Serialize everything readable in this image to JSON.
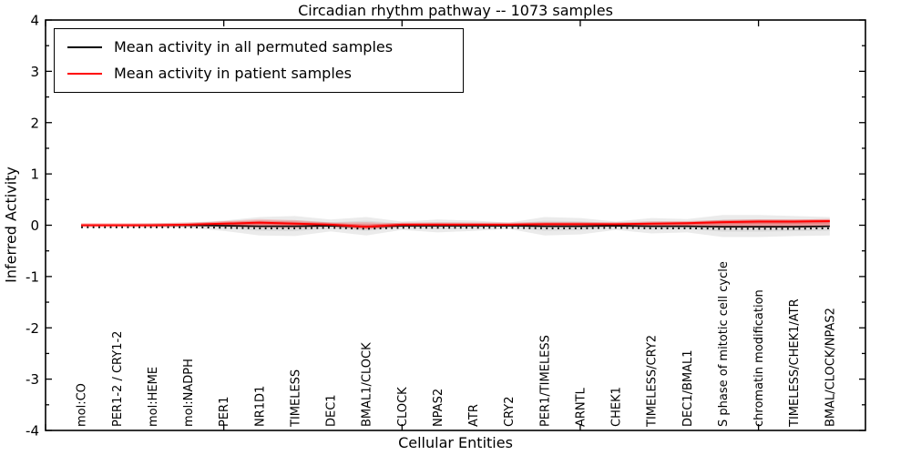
{
  "figure": {
    "title": "Circadian rhythm pathway -- 1073 samples",
    "xlabel": "Cellular Entities",
    "ylabel": "Inferred Activity"
  },
  "legend": {
    "items": [
      {
        "label": "Mean activity in all permuted samples",
        "color": "#000000"
      },
      {
        "label": "Mean activity in patient samples",
        "color": "#ff0000"
      }
    ]
  },
  "chart_data": {
    "type": "line",
    "title": "Circadian rhythm pathway -- 1073 samples",
    "xlabel": "Cellular Entities",
    "ylabel": "Inferred Activity",
    "ylim": [
      -4,
      4
    ],
    "xlim": [
      0,
      23
    ],
    "yticks": [
      -4,
      -3,
      -2,
      -1,
      0,
      1,
      2,
      3,
      4
    ],
    "ytick_minor_step": 0.5,
    "xticks": [
      0,
      5,
      10,
      15,
      20
    ],
    "grid": false,
    "legend_position": "upper left",
    "categories": [
      "mol:CO",
      "PER1-2 / CRY1-2",
      "mol:HEME",
      "mol:NADPH",
      "PER1",
      "NR1D1",
      "TIMELESS",
      "DEC1",
      "BMAL1/CLOCK",
      "CLOCK",
      "NPAS2",
      "ATR",
      "CRY2",
      "PER1/TIMELESS",
      "ARNTL",
      "CHEK1",
      "TIMELESS/CRY2",
      "DEC1/BMAL1",
      "S phase of mitotic cell cycle",
      "chromatin modification",
      "TIMELESS/CHEK1/ATR",
      "BMAL/CLOCK/NPAS2"
    ],
    "x_positions": [
      1,
      2,
      3,
      4,
      5,
      6,
      7,
      8,
      9,
      10,
      11,
      12,
      13,
      14,
      15,
      16,
      17,
      18,
      19,
      20,
      21,
      22
    ],
    "series": [
      {
        "name": "Mean activity in all permuted samples",
        "color": "#000000",
        "values": [
          0,
          0,
          0,
          0,
          -0.01,
          -0.02,
          -0.02,
          -0.01,
          -0.03,
          -0.01,
          -0.01,
          -0.01,
          -0.01,
          -0.02,
          -0.02,
          -0.01,
          -0.02,
          -0.02,
          -0.03,
          -0.03,
          -0.03,
          -0.02
        ]
      },
      {
        "name": "Mean activity in patient samples",
        "color": "#ff0000",
        "values": [
          0,
          0,
          0,
          0.01,
          0.03,
          0.05,
          0.03,
          0.01,
          -0.03,
          0.01,
          0.01,
          0.01,
          0.01,
          0.02,
          0.02,
          0.02,
          0.03,
          0.04,
          0.06,
          0.07,
          0.07,
          0.08
        ]
      }
    ],
    "bands": [
      {
        "name": "permuted-samples-range",
        "color": "#999999",
        "upper": [
          0.02,
          0.02,
          0.04,
          0.05,
          0.09,
          0.16,
          0.18,
          0.11,
          0.16,
          0.07,
          0.11,
          0.09,
          0.05,
          0.16,
          0.14,
          0.07,
          0.14,
          0.12,
          0.2,
          0.2,
          0.18,
          0.16
        ],
        "lower": [
          -0.02,
          -0.02,
          -0.04,
          -0.05,
          -0.11,
          -0.2,
          -0.21,
          -0.12,
          -0.2,
          -0.09,
          -0.14,
          -0.11,
          -0.07,
          -0.2,
          -0.18,
          -0.09,
          -0.16,
          -0.14,
          -0.23,
          -0.23,
          -0.21,
          -0.2
        ]
      },
      {
        "name": "patient-samples-range",
        "color": "#ff0000",
        "upper": [
          0.01,
          0.01,
          0.02,
          0.03,
          0.08,
          0.12,
          0.1,
          0.05,
          0.06,
          0.03,
          0.04,
          0.03,
          0.03,
          0.05,
          0.05,
          0.03,
          0.05,
          0.06,
          0.1,
          0.11,
          0.11,
          0.12
        ],
        "lower": [
          -0.01,
          -0.01,
          -0.02,
          -0.02,
          -0.03,
          -0.05,
          -0.06,
          -0.03,
          -0.08,
          -0.03,
          -0.03,
          -0.02,
          -0.02,
          -0.04,
          -0.04,
          -0.03,
          -0.04,
          -0.04,
          -0.05,
          -0.05,
          -0.05,
          -0.04
        ]
      }
    ]
  }
}
